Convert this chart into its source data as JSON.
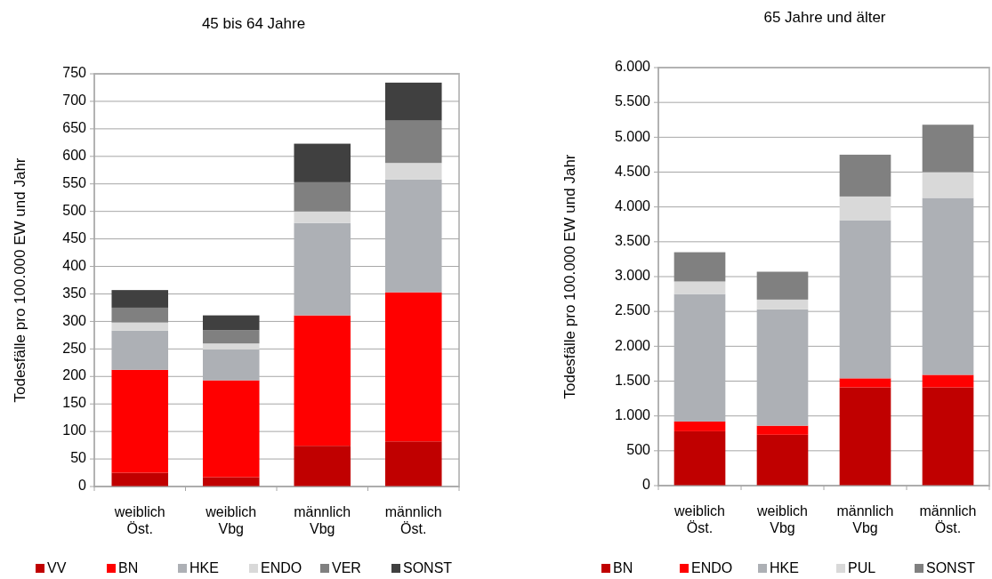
{
  "chart_data": [
    {
      "type": "bar",
      "title": "45 bis 64 Jahre",
      "ylabel": "Todesfälle pro 100.000 EW und Jahr",
      "categories": [
        "weiblich Öst.",
        "weiblich Vbg",
        "männlich Vbg",
        "männlich Öst."
      ],
      "stacked": true,
      "ylim": [
        0,
        750
      ],
      "yticks": [
        0,
        50,
        100,
        150,
        200,
        250,
        300,
        350,
        400,
        450,
        500,
        550,
        600,
        650,
        700,
        750
      ],
      "grid": "y",
      "legend": "bottom",
      "series": [
        {
          "name": "VV",
          "color": "#c00000",
          "values": [
            25,
            17,
            74,
            82
          ]
        },
        {
          "name": "BN",
          "color": "#ff0000",
          "values": [
            187,
            176,
            237,
            271
          ]
        },
        {
          "name": "HKE",
          "color": "#adb0b5",
          "values": [
            71,
            56,
            168,
            205
          ]
        },
        {
          "name": "ENDO",
          "color": "#d9d9d9",
          "values": [
            15,
            11,
            21,
            30
          ]
        },
        {
          "name": "VER",
          "color": "#808080",
          "values": [
            27,
            24,
            53,
            77
          ]
        },
        {
          "name": "SONST",
          "color": "#404040",
          "values": [
            32,
            27,
            70,
            69
          ]
        }
      ]
    },
    {
      "type": "bar",
      "title": "65 Jahre und älter",
      "ylabel": "Todesfälle pro 100.000 EW und Jahr",
      "categories": [
        "weiblich Öst.",
        "weiblich Vbg",
        "männlich Vbg",
        "männlich Öst."
      ],
      "stacked": true,
      "ylim": [
        0,
        6000
      ],
      "yticks": [
        0,
        500,
        {
          "value": 1000,
          "label": "1.000"
        },
        {
          "value": 1500,
          "label": "1.500"
        },
        {
          "value": 2000,
          "label": "2.000"
        },
        {
          "value": 2500,
          "label": "2.500"
        },
        {
          "value": 3000,
          "label": "3.000"
        },
        {
          "value": 3500,
          "label": "3.500"
        },
        {
          "value": 4000,
          "label": "4.000"
        },
        {
          "value": 4500,
          "label": "4.500"
        },
        {
          "value": 5000,
          "label": "5.000"
        },
        {
          "value": 5500,
          "label": "5.500"
        },
        {
          "value": 6000,
          "label": "6.000"
        }
      ],
      "grid": "y",
      "legend": "bottom",
      "series": [
        {
          "name": "BN",
          "color": "#c00000",
          "values": [
            780,
            730,
            1410,
            1410
          ]
        },
        {
          "name": "ENDO",
          "color": "#ff0000",
          "values": [
            140,
            130,
            130,
            180
          ]
        },
        {
          "name": "HKE",
          "color": "#adb0b5",
          "values": [
            1830,
            1670,
            2270,
            2540
          ]
        },
        {
          "name": "PUL",
          "color": "#d9d9d9",
          "values": [
            180,
            140,
            340,
            370
          ]
        },
        {
          "name": "SONST",
          "color": "#808080",
          "values": [
            420,
            400,
            600,
            680
          ]
        }
      ]
    }
  ]
}
